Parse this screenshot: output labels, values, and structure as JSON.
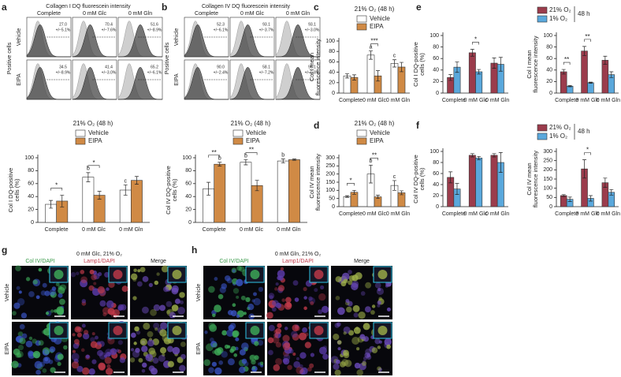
{
  "figure": {
    "panel_labels": [
      "a",
      "b",
      "c",
      "d",
      "e",
      "f",
      "g",
      "h"
    ],
    "flow": [
      {
        "title": "Collagen I DQ fluorescein intensity",
        "ylabel": "Positive cells",
        "columns": [
          "Complete",
          "0 mM Glc",
          "0 mM Gln"
        ],
        "rows": [
          {
            "label": "Vehicle",
            "cells": [
              {
                "value": "27.0",
                "pct": "+/−5.1%"
              },
              {
                "value": "70.4",
                "pct": "+/−7.6%"
              },
              {
                "value": "51.6",
                "pct": "+/−8.9%"
              }
            ]
          },
          {
            "label": "EIPA",
            "cells": [
              {
                "value": "34.5",
                "pct": "+/−8.9%"
              },
              {
                "value": "41.4",
                "pct": "+/−3.0%"
              },
              {
                "value": "65.2",
                "pct": "+/−6.1%"
              }
            ]
          }
        ]
      },
      {
        "title": "Collagen IV DQ fluorescein intensity",
        "ylabel": "Positive cells",
        "columns": [
          "Complete",
          "0 mM Glc",
          "0 mM Gln"
        ],
        "rows": [
          {
            "label": "Vehicle",
            "cells": [
              {
                "value": "52.3",
                "pct": "+/−6.1%"
              },
              {
                "value": "93.1",
                "pct": "+/−3.7%"
              },
              {
                "value": "93.1",
                "pct": "+/−3.0%"
              }
            ]
          },
          {
            "label": "EIPA",
            "cells": [
              {
                "value": "90.0",
                "pct": "+/−2.4%"
              },
              {
                "value": "58.1",
                "pct": "+/−7.2%"
              },
              {
                "value": "96.1",
                "pct": "+/−0.8%"
              }
            ]
          }
        ]
      }
    ],
    "micro": [
      {
        "title": "0 mM Glc, 21% O₂",
        "columns": [
          "Col IV/DAPI",
          "Lamp1/DAPI",
          "Merge"
        ],
        "rows": [
          "Vehicle",
          "EIPA"
        ]
      },
      {
        "title": "0 mM Gln, 21% O₂",
        "columns": [
          "Col IV/DAPI",
          "Lamp1/DAPI",
          "Merge"
        ],
        "rows": [
          "Vehicle",
          "EIPA"
        ]
      }
    ]
  },
  "chart_data": [
    {
      "type": "bar",
      "title": "21% O₂ (48 h)",
      "ylabel": [
        "Col I DQ-positive",
        "cells (%)"
      ],
      "categories": [
        "Complete",
        "0 mM Glc",
        "0 mM Gln"
      ],
      "series": [
        {
          "name": "Vehicle",
          "color": "#ffffff",
          "values": [
            28,
            70,
            50
          ],
          "errors": [
            6,
            7,
            8
          ],
          "letters": [
            null,
            "b",
            "c"
          ]
        },
        {
          "name": "EIPA",
          "color": "#d08a45",
          "values": [
            33,
            42,
            65
          ],
          "errors": [
            9,
            6,
            6
          ]
        }
      ],
      "significance": [
        "*",
        "*",
        null
      ],
      "ylim": [
        0,
        100
      ],
      "yticks": [
        0,
        20,
        40,
        60,
        80,
        100
      ]
    },
    {
      "type": "bar",
      "title": "21% O₂ (48 h)",
      "ylabel": [
        "Col IV DQ-positive",
        "cells (%)"
      ],
      "categories": [
        "Complete",
        "0 mM Glc",
        "0 mM Gln"
      ],
      "series": [
        {
          "name": "Vehicle",
          "color": "#ffffff",
          "values": [
            52,
            93,
            95
          ],
          "errors": [
            10,
            4,
            3
          ],
          "letters": [
            null,
            "b",
            "b"
          ]
        },
        {
          "name": "EIPA",
          "color": "#d08a45",
          "values": [
            90,
            57,
            97
          ],
          "errors": [
            3,
            8,
            1
          ],
          "letters": [
            "b",
            null,
            null
          ]
        }
      ],
      "significance": [
        "**",
        "**",
        null
      ],
      "ylim": [
        0,
        100
      ],
      "yticks": [
        0,
        20,
        40,
        60,
        80,
        100
      ]
    },
    {
      "type": "bar",
      "title": "21% O₂ (48 h)",
      "ylabel": [
        "Col I mean",
        "fluorescence intensity"
      ],
      "categories": [
        "Complete",
        "0 mM Glc",
        "0 mM Gln"
      ],
      "series": [
        {
          "name": "Vehicle",
          "color": "#ffffff",
          "values": [
            33,
            73,
            57
          ],
          "errors": [
            4,
            8,
            7
          ],
          "letters": [
            null,
            "a",
            "c"
          ]
        },
        {
          "name": "EIPA",
          "color": "#d08a45",
          "values": [
            30,
            33,
            50
          ],
          "errors": [
            5,
            10,
            9
          ]
        }
      ],
      "significance": [
        null,
        "***",
        null
      ],
      "ylim": [
        0,
        100
      ],
      "yticks": [
        0,
        20,
        40,
        60,
        80,
        100
      ]
    },
    {
      "type": "bar",
      "title": "21% O₂ (48 h)",
      "ylabel": [
        "Col IV mean",
        "fluorescence intensity"
      ],
      "categories": [
        "Complete",
        "0 mM Glc",
        "0 mM Gln"
      ],
      "series": [
        {
          "name": "Vehicle",
          "color": "#ffffff",
          "values": [
            62,
            200,
            130
          ],
          "errors": [
            5,
            55,
            30
          ],
          "letters": [
            null,
            "b",
            "c"
          ]
        },
        {
          "name": "EIPA",
          "color": "#d08a45",
          "values": [
            88,
            60,
            85
          ],
          "errors": [
            12,
            10,
            12
          ]
        }
      ],
      "significance": [
        "*",
        "**",
        null
      ],
      "ylim": [
        0,
        300
      ],
      "yticks": [
        0,
        50,
        100,
        150,
        200,
        250,
        300
      ]
    },
    {
      "type": "bar",
      "ylabel": [
        "Col I DQ-positive",
        "cells (%)"
      ],
      "categories": [
        "Complete",
        "0 mM Glc",
        "0 mM Gln"
      ],
      "series": [
        {
          "color": "#9b3c4c",
          "values": [
            27,
            70,
            52
          ],
          "errors": [
            5,
            6,
            9
          ]
        },
        {
          "color": "#5aa8dc",
          "values": [
            45,
            37,
            50
          ],
          "errors": [
            9,
            4,
            12
          ]
        }
      ],
      "significance": [
        null,
        "*",
        null
      ],
      "ylim": [
        0,
        100
      ],
      "yticks": [
        0,
        20,
        40,
        60,
        80,
        100
      ]
    },
    {
      "type": "bar",
      "ylabel": [
        "Col I mean",
        "fluorescence intensity"
      ],
      "categories": [
        "Complete",
        "0 mM Glc",
        "0 mM Gln"
      ],
      "series": [
        {
          "name": "21% O₂",
          "color": "#9b3c4c",
          "values": [
            37,
            73,
            57
          ],
          "errors": [
            4,
            8,
            7
          ]
        },
        {
          "name": "1% O₂",
          "color": "#5aa8dc",
          "values": [
            12,
            18,
            32
          ],
          "errors": [
            1,
            1,
            5
          ]
        }
      ],
      "legend_note": "48 h",
      "significance": [
        "**",
        "**",
        null
      ],
      "ylim": [
        0,
        100
      ],
      "yticks": [
        0,
        20,
        40,
        60,
        80,
        100
      ]
    },
    {
      "type": "bar",
      "ylabel": [
        "Col IV DQ-positive",
        "cells (%)"
      ],
      "categories": [
        "Complete",
        "0 mM Glc",
        "0 mM Gln"
      ],
      "series": [
        {
          "color": "#9b3c4c",
          "values": [
            53,
            93,
            93
          ],
          "errors": [
            10,
            3,
            3
          ]
        },
        {
          "color": "#5aa8dc",
          "values": [
            32,
            88,
            80
          ],
          "errors": [
            10,
            3,
            18
          ]
        }
      ],
      "ylim": [
        0,
        100
      ],
      "yticks": [
        0,
        20,
        40,
        60,
        80,
        100
      ]
    },
    {
      "type": "bar",
      "ylabel": [
        "Col IV mean",
        "fluorescence intensity"
      ],
      "categories": [
        "Complete",
        "0 mM Glc",
        "0 mM Gln"
      ],
      "series": [
        {
          "name": "21% O₂",
          "color": "#9b3c4c",
          "values": [
            60,
            205,
            130
          ],
          "errors": [
            5,
            50,
            25
          ]
        },
        {
          "name": "1% O₂",
          "color": "#5aa8dc",
          "values": [
            40,
            45,
            78
          ],
          "errors": [
            12,
            15,
            15
          ]
        }
      ],
      "legend_note": "48 h",
      "significance": [
        null,
        "*",
        null
      ],
      "ylim": [
        0,
        300
      ],
      "yticks": [
        0,
        50,
        100,
        150,
        200,
        250,
        300
      ]
    }
  ]
}
